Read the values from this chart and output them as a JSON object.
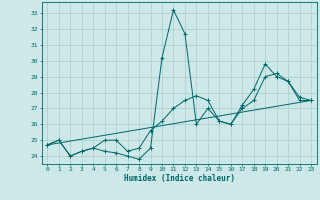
{
  "xlabel": "Humidex (Indice chaleur)",
  "bg_color": "#cce8e8",
  "grid_color": "#aacccc",
  "line_color": "#006666",
  "xlim": [
    -0.5,
    23.5
  ],
  "ylim": [
    23.5,
    33.7
  ],
  "yticks": [
    24,
    25,
    26,
    27,
    28,
    29,
    30,
    31,
    32,
    33
  ],
  "xticks": [
    0,
    1,
    2,
    3,
    4,
    5,
    6,
    7,
    8,
    9,
    10,
    11,
    12,
    13,
    14,
    15,
    16,
    17,
    18,
    19,
    20,
    21,
    22,
    23
  ],
  "series1": [
    [
      0,
      24.7
    ],
    [
      1,
      25.0
    ],
    [
      2,
      24.0
    ],
    [
      3,
      24.3
    ],
    [
      4,
      24.5
    ],
    [
      5,
      24.3
    ],
    [
      6,
      24.2
    ],
    [
      7,
      24.0
    ],
    [
      8,
      23.8
    ],
    [
      9,
      24.5
    ],
    [
      10,
      30.2
    ],
    [
      11,
      33.2
    ],
    [
      12,
      31.7
    ],
    [
      13,
      26.0
    ],
    [
      14,
      27.0
    ],
    [
      15,
      26.2
    ],
    [
      16,
      26.0
    ],
    [
      17,
      27.2
    ],
    [
      18,
      28.2
    ],
    [
      19,
      29.8
    ],
    [
      20,
      29.0
    ],
    [
      21,
      28.7
    ],
    [
      22,
      27.5
    ],
    [
      23,
      27.5
    ]
  ],
  "series2": [
    [
      0,
      24.7
    ],
    [
      1,
      25.0
    ],
    [
      2,
      24.0
    ],
    [
      3,
      24.3
    ],
    [
      4,
      24.5
    ],
    [
      5,
      25.0
    ],
    [
      6,
      25.0
    ],
    [
      7,
      24.3
    ],
    [
      8,
      24.5
    ],
    [
      9,
      25.6
    ],
    [
      10,
      26.2
    ],
    [
      11,
      27.0
    ],
    [
      12,
      27.5
    ],
    [
      13,
      27.8
    ],
    [
      14,
      27.5
    ],
    [
      15,
      26.2
    ],
    [
      16,
      26.0
    ],
    [
      17,
      27.0
    ],
    [
      18,
      27.5
    ],
    [
      19,
      29.0
    ],
    [
      20,
      29.2
    ],
    [
      21,
      28.7
    ],
    [
      22,
      27.7
    ],
    [
      23,
      27.5
    ]
  ],
  "series3": [
    [
      0,
      24.7
    ],
    [
      23,
      27.5
    ]
  ]
}
